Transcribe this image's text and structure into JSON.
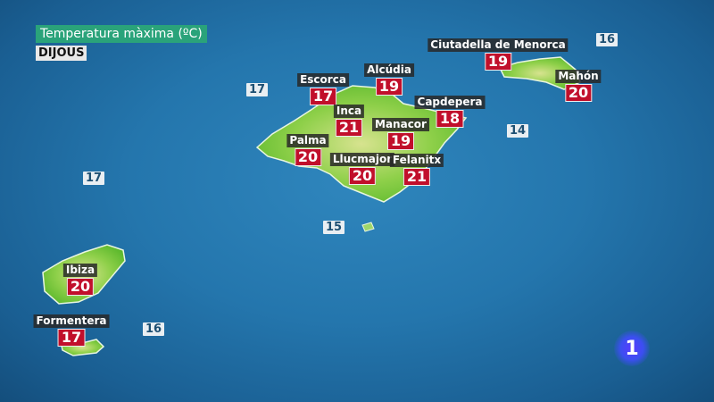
{
  "header": {
    "title": "Temperatura màxima (ºC)",
    "day": "DIJOUS"
  },
  "colors": {
    "land": "#6cc234",
    "sea": "#2476ad",
    "value_box": "#c10f2b",
    "title_box": "#2aa37a"
  },
  "cities": [
    {
      "name": "Ciutadella de Menorca",
      "temp": "19"
    },
    {
      "name": "Mahón",
      "temp": "20"
    },
    {
      "name": "Escorca",
      "temp": "17"
    },
    {
      "name": "Alcúdia",
      "temp": "19"
    },
    {
      "name": "Capdepera",
      "temp": "18"
    },
    {
      "name": "Inca",
      "temp": "21"
    },
    {
      "name": "Manacor",
      "temp": "19"
    },
    {
      "name": "Palma",
      "temp": "20"
    },
    {
      "name": "Llucmajor",
      "temp": "20"
    },
    {
      "name": "Felanitx",
      "temp": "21"
    },
    {
      "name": "Ibiza",
      "temp": "20"
    },
    {
      "name": "Formentera",
      "temp": "17"
    }
  ],
  "sea_temps": [
    "16",
    "17",
    "14",
    "17",
    "15",
    "16"
  ],
  "logo": {
    "text": "1"
  }
}
